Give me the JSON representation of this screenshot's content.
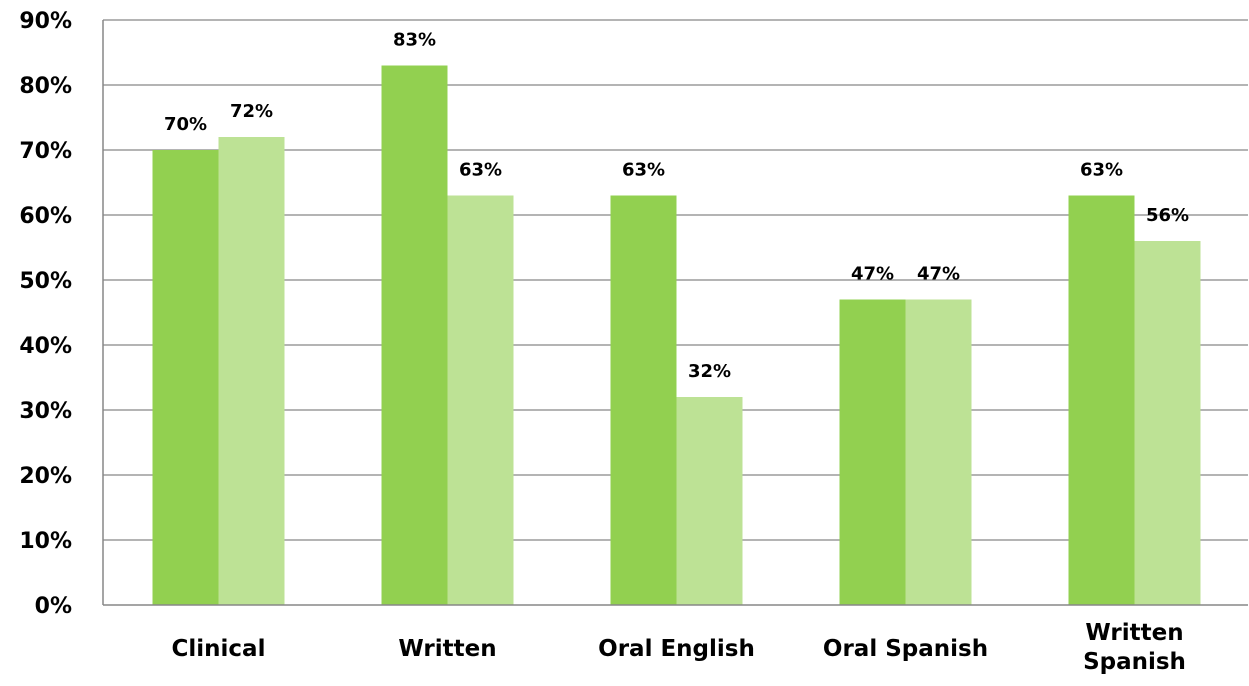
{
  "chart_data": {
    "type": "bar",
    "title": "",
    "xlabel": "",
    "ylabel": "",
    "categories": [
      [
        "Clinical"
      ],
      [
        "Written"
      ],
      [
        "Oral English"
      ],
      [
        "Oral Spanish"
      ],
      [
        "Written",
        "Spanish"
      ]
    ],
    "series": [
      {
        "color": "#92d050",
        "values": [
          70,
          83,
          63,
          47,
          63
        ],
        "labels": [
          "70%",
          "83%",
          "63%",
          "47%",
          "63%"
        ]
      },
      {
        "color": "#bde295",
        "values": [
          72,
          63,
          32,
          47,
          56
        ],
        "labels": [
          "72%",
          "63%",
          "32%",
          "47%",
          "56%"
        ]
      }
    ],
    "ylim": [
      0,
      90
    ],
    "yticks": [
      0,
      10,
      20,
      30,
      40,
      50,
      60,
      70,
      80,
      90
    ],
    "ytick_labels": [
      "0%",
      "10%",
      "20%",
      "30%",
      "40%",
      "50%",
      "60%",
      "70%",
      "80%",
      "90%"
    ],
    "grid": true,
    "legend": "none"
  }
}
